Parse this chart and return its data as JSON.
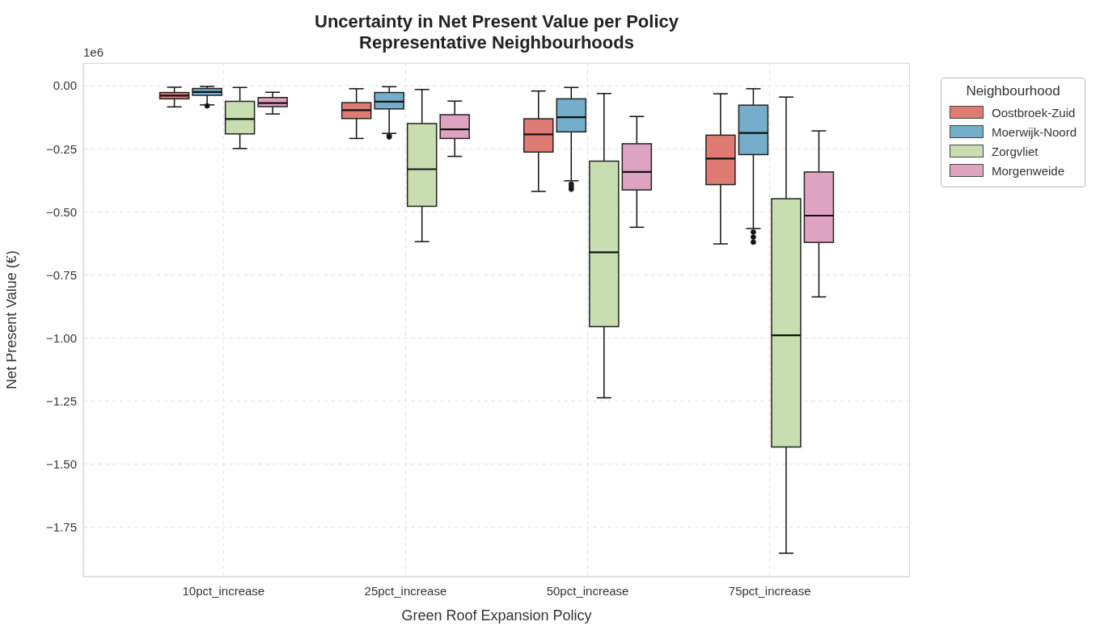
{
  "chart_data": {
    "type": "box",
    "title": "Uncertainty in Net Present Value per Policy\nRepresentative Neighbourhoods",
    "xlabel": "Green Roof Expansion Policy",
    "ylabel": "Net Present Value (€)",
    "legend_title": "Neighbourhood",
    "legend": "top right",
    "grid": true,
    "categories": [
      "10pct_increase",
      "25pct_increase",
      "50pct_increase",
      "75pct_increase"
    ],
    "ylim": [
      -1.946,
      0.09
    ],
    "yticks": [
      {
        "value": 0,
        "label": "0.00"
      },
      {
        "value": -0.25,
        "label": "−0.25"
      },
      {
        "value": -0.5,
        "label": "−0.50"
      },
      {
        "value": -0.75,
        "label": "−0.75"
      },
      {
        "value": -1,
        "label": "−1.00"
      },
      {
        "value": -1.25,
        "label": "−1.25"
      },
      {
        "value": -1.5,
        "label": "−1.50"
      },
      {
        "value": -1.75,
        "label": "−1.75"
      }
    ],
    "annotations": [
      "1e6"
    ],
    "series": [
      {
        "name": "Oostbroek-Zuid",
        "color": "#e07b73",
        "boxes": [
          {
            "low": -0.084,
            "q1": -0.052,
            "median": -0.039,
            "q3": -0.027,
            "high": -0.006
          },
          {
            "low": -0.209,
            "q1": -0.13,
            "median": -0.097,
            "q3": -0.067,
            "high": -0.012
          },
          {
            "low": -0.419,
            "q1": -0.263,
            "median": -0.193,
            "q3": -0.131,
            "high": -0.021
          },
          {
            "low": -0.627,
            "q1": -0.392,
            "median": -0.289,
            "q3": -0.196,
            "high": -0.032
          }
        ]
      },
      {
        "name": "Moerwijk-Noord",
        "color": "#74aecb",
        "boxes": [
          {
            "low": -0.076,
            "q1": -0.038,
            "median": -0.025,
            "q3": -0.011,
            "high": -0.003,
            "outliers": [
              -0.08
            ]
          },
          {
            "low": -0.189,
            "q1": -0.092,
            "median": -0.063,
            "q3": -0.027,
            "high": -0.004,
            "outliers": [
              -0.197,
              -0.203
            ]
          },
          {
            "low": -0.377,
            "q1": -0.183,
            "median": -0.125,
            "q3": -0.052,
            "high": -0.007,
            "outliers": [
              -0.39,
              -0.4,
              -0.41
            ]
          },
          {
            "low": -0.566,
            "q1": -0.273,
            "median": -0.187,
            "q3": -0.077,
            "high": -0.012,
            "outliers": [
              -0.58,
              -0.6,
              -0.62
            ]
          }
        ]
      },
      {
        "name": "Zorgvliet",
        "color": "#c8deb0",
        "boxes": [
          {
            "low": -0.249,
            "q1": -0.191,
            "median": -0.132,
            "q3": -0.062,
            "high": -0.007
          },
          {
            "low": -0.618,
            "q1": -0.478,
            "median": -0.331,
            "q3": -0.15,
            "high": -0.015
          },
          {
            "low": -1.237,
            "q1": -0.955,
            "median": -0.66,
            "q3": -0.299,
            "high": -0.031
          },
          {
            "low": -1.853,
            "q1": -1.432,
            "median": -0.989,
            "q3": -0.448,
            "high": -0.045
          }
        ]
      },
      {
        "name": "Morgenweide",
        "color": "#dda3c1",
        "boxes": [
          {
            "low": -0.112,
            "q1": -0.083,
            "median": -0.069,
            "q3": -0.047,
            "high": -0.026
          },
          {
            "low": -0.28,
            "q1": -0.209,
            "median": -0.173,
            "q3": -0.115,
            "high": -0.061
          },
          {
            "low": -0.561,
            "q1": -0.413,
            "median": -0.342,
            "q3": -0.23,
            "high": -0.122
          },
          {
            "low": -0.837,
            "q1": -0.621,
            "median": -0.515,
            "q3": -0.342,
            "high": -0.179
          }
        ]
      }
    ]
  }
}
